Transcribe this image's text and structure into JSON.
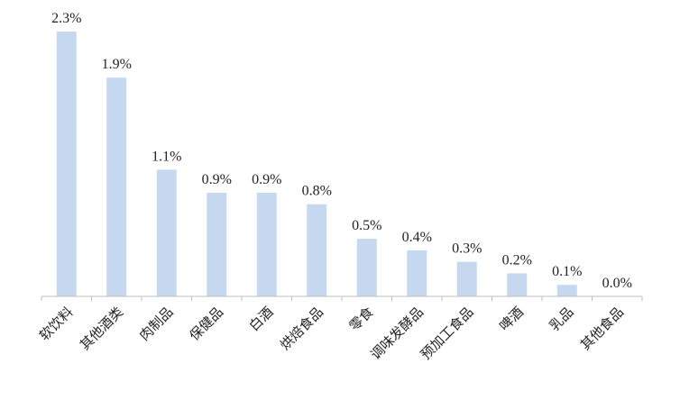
{
  "chart_data": {
    "type": "bar",
    "categories": [
      "软饮料",
      "其他酒类",
      "肉制品",
      "保健品",
      "白酒",
      "烘焙食品",
      "零食",
      "调味发酵品",
      "预加工食品",
      "啤酒",
      "乳品",
      "其他食品"
    ],
    "values": [
      2.3,
      1.9,
      1.1,
      0.9,
      0.9,
      0.8,
      0.5,
      0.4,
      0.3,
      0.2,
      0.1,
      0.0
    ],
    "value_labels": [
      "2.3%",
      "1.9%",
      "1.1%",
      "0.9%",
      "0.9%",
      "0.8%",
      "0.5%",
      "0.4%",
      "0.3%",
      "0.2%",
      "0.1%",
      "0.0%"
    ],
    "title": "",
    "xlabel": "",
    "ylabel": "",
    "ylim": [
      0,
      2.3
    ],
    "grid": false,
    "legend": "none",
    "bar_color": "#c6d8f0",
    "axis_color": "#bfbfbf"
  }
}
